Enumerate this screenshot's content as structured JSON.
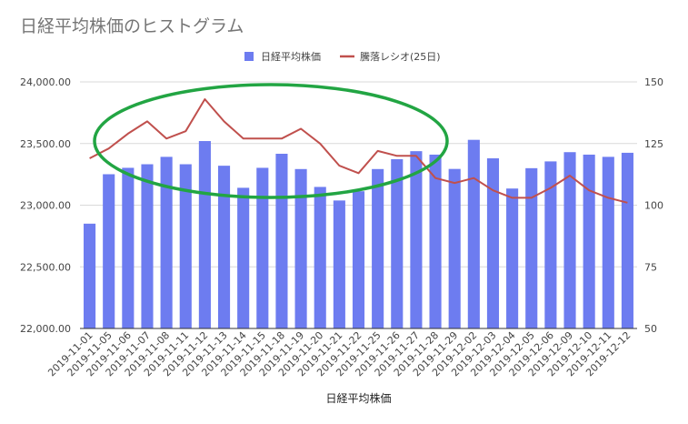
{
  "chart_data": {
    "type": "bar",
    "title": "日経平均株価のヒストグラム",
    "xlabel": "日経平均株価",
    "legend_position": "top",
    "categories": [
      "2019-11-01",
      "2019-11-05",
      "2019-11-06",
      "2019-11-07",
      "2019-11-08",
      "2019-11-11",
      "2019-11-12",
      "2019-11-13",
      "2019-11-14",
      "2019-11-15",
      "2019-11-18",
      "2019-11-19",
      "2019-11-20",
      "2019-11-21",
      "2019-11-22",
      "2019-11-25",
      "2019-11-26",
      "2019-11-27",
      "2019-11-28",
      "2019-11-29",
      "2019-12-02",
      "2019-12-03",
      "2019-12-04",
      "2019-12-05",
      "2019-12-06",
      "2019-12-09",
      "2019-12-10",
      "2019-12-11",
      "2019-12-12"
    ],
    "series": [
      {
        "name": "日経平均株価",
        "type": "bar",
        "axis": "left",
        "color": "#6d7cf0",
        "values": [
          22850,
          23251,
          23303,
          23332,
          23392,
          23332,
          23520,
          23320,
          23141,
          23303,
          23417,
          23293,
          23148,
          23038,
          23113,
          23293,
          23373,
          23438,
          23410,
          23294,
          23530,
          23380,
          23135,
          23300,
          23355,
          23430,
          23410,
          23392,
          23425
        ]
      },
      {
        "name": "騰落レシオ(25日)",
        "type": "line",
        "axis": "right",
        "color": "#c0504d",
        "values": [
          119,
          123,
          129,
          134,
          127,
          130,
          143,
          134,
          127,
          127,
          127,
          131,
          125,
          116,
          113,
          122,
          120,
          120,
          111,
          109,
          111,
          106,
          103,
          103,
          107,
          112,
          106,
          103,
          101
        ]
      }
    ],
    "y_left": {
      "ylim": [
        22000,
        24000
      ],
      "ticks": [
        "22,000.00",
        "22,500.00",
        "23,000.00",
        "23,500.00",
        "24,000.00"
      ]
    },
    "y_right": {
      "ylim": [
        50,
        150
      ],
      "ticks": [
        "50",
        "75",
        "100",
        "125",
        "150"
      ]
    },
    "grid": true,
    "annotation": {
      "type": "ellipse",
      "color": "#22a543"
    }
  }
}
